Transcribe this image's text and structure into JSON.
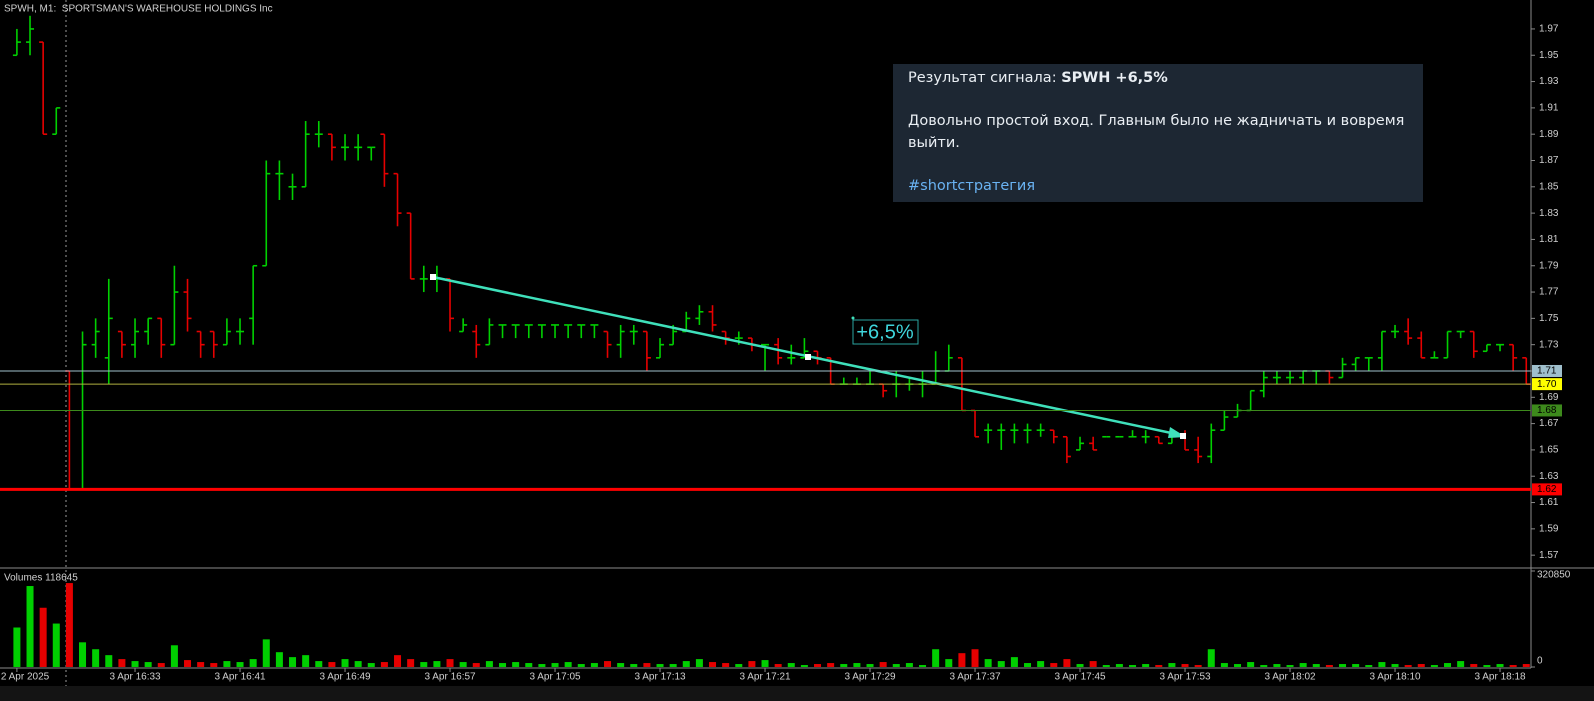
{
  "chart_data": {
    "type": "ohlc",
    "title": "SPWH, M1:  SPORTSMAN'S WAREHOUSE HOLDINGS Inc",
    "categories": [
      "2 Apr 2025",
      null,
      null,
      null,
      null,
      null,
      null,
      null,
      null,
      "3 Apr 16:33",
      null,
      null,
      null,
      null,
      null,
      null,
      null,
      "3 Apr 16:41",
      null,
      null,
      null,
      null,
      null,
      null,
      null,
      "3 Apr 16:49",
      null,
      null,
      null,
      null,
      null,
      null,
      null,
      "3 Apr 16:57",
      null,
      null,
      null,
      null,
      null,
      null,
      null,
      "3 Apr 17:05",
      null,
      null,
      null,
      null,
      null,
      null,
      null,
      "3 Apr 17:13",
      null,
      null,
      null,
      null,
      null,
      null,
      null,
      "3 Apr 17:21",
      null,
      null,
      null,
      null,
      null,
      null,
      null,
      "3 Apr 17:29",
      null,
      null,
      null,
      null,
      null,
      null,
      null,
      "3 Apr 17:37",
      null,
      null,
      null,
      null,
      null,
      null,
      null,
      "3 Apr 17:45",
      null,
      null,
      null,
      null,
      null,
      null,
      null,
      "3 Apr 17:53",
      null,
      null,
      null,
      null,
      null,
      null,
      null,
      "3 Apr 18:02",
      null,
      null,
      null,
      null,
      null,
      null,
      null,
      "3 Apr 18:10",
      null,
      null,
      null,
      null,
      null,
      null,
      null,
      "3 Apr 18:18",
      null,
      null
    ],
    "open": [
      1.95,
      1.96,
      1.96,
      1.89,
      1.71,
      1.62,
      1.73,
      1.72,
      1.74,
      1.73,
      1.74,
      1.75,
      1.73,
      1.77,
      1.74,
      1.74,
      1.73,
      1.74,
      1.75,
      1.79,
      1.86,
      1.85,
      1.85,
      1.89,
      1.89,
      1.88,
      1.88,
      1.88,
      1.89,
      1.86,
      1.83,
      1.78,
      1.78,
      1.78,
      1.74,
      1.74,
      1.73,
      1.745,
      1.745,
      1.745,
      1.745,
      1.745,
      1.745,
      1.745,
      1.745,
      1.74,
      1.73,
      1.74,
      1.74,
      1.72,
      1.73,
      1.74,
      1.75,
      1.755,
      1.74,
      1.735,
      1.735,
      1.73,
      1.73,
      1.72,
      1.72,
      1.725,
      1.72,
      1.7,
      1.7,
      1.7,
      1.7,
      1.7,
      1.7,
      1.7,
      1.7,
      1.71,
      1.72,
      1.68,
      1.665,
      1.665,
      1.665,
      1.665,
      1.665,
      1.665,
      1.66,
      1.65,
      1.655,
      1.66,
      1.66,
      1.66,
      1.66,
      1.66,
      1.655,
      1.66,
      1.65,
      1.645,
      1.665,
      1.675,
      1.68,
      1.695,
      1.705,
      1.705,
      1.705,
      1.71,
      1.71,
      1.705,
      1.715,
      1.72,
      1.72,
      1.74,
      1.74,
      1.735,
      1.72,
      1.72,
      1.74,
      1.74,
      1.725,
      1.73,
      1.73,
      1.72
    ],
    "high": [
      1.97,
      1.98,
      1.96,
      1.91,
      1.71,
      1.74,
      1.75,
      1.78,
      1.74,
      1.75,
      1.75,
      1.75,
      1.79,
      1.78,
      1.74,
      1.74,
      1.75,
      1.75,
      1.79,
      1.87,
      1.87,
      1.86,
      1.9,
      1.9,
      1.89,
      1.89,
      1.89,
      1.88,
      1.89,
      1.86,
      1.83,
      1.79,
      1.79,
      1.78,
      1.75,
      1.745,
      1.75,
      1.745,
      1.745,
      1.745,
      1.745,
      1.745,
      1.745,
      1.745,
      1.745,
      1.74,
      1.745,
      1.745,
      1.74,
      1.735,
      1.745,
      1.755,
      1.76,
      1.76,
      1.74,
      1.74,
      1.735,
      1.73,
      1.735,
      1.73,
      1.735,
      1.725,
      1.72,
      1.705,
      1.705,
      1.71,
      1.7,
      1.71,
      1.705,
      1.71,
      1.725,
      1.73,
      1.72,
      1.68,
      1.67,
      1.67,
      1.67,
      1.67,
      1.67,
      1.665,
      1.66,
      1.66,
      1.66,
      1.66,
      1.66,
      1.665,
      1.665,
      1.66,
      1.665,
      1.665,
      1.66,
      1.67,
      1.68,
      1.685,
      1.695,
      1.71,
      1.71,
      1.71,
      1.71,
      1.71,
      1.71,
      1.72,
      1.72,
      1.72,
      1.74,
      1.745,
      1.75,
      1.74,
      1.725,
      1.74,
      1.74,
      1.74,
      1.73,
      1.73,
      1.73,
      1.72
    ],
    "low": [
      1.95,
      1.95,
      1.89,
      1.89,
      1.62,
      1.62,
      1.72,
      1.7,
      1.72,
      1.72,
      1.73,
      1.72,
      1.73,
      1.74,
      1.72,
      1.72,
      1.73,
      1.73,
      1.73,
      1.79,
      1.84,
      1.84,
      1.85,
      1.88,
      1.87,
      1.87,
      1.87,
      1.87,
      1.85,
      1.82,
      1.78,
      1.77,
      1.77,
      1.74,
      1.74,
      1.72,
      1.73,
      1.735,
      1.735,
      1.735,
      1.735,
      1.735,
      1.735,
      1.735,
      1.735,
      1.72,
      1.72,
      1.73,
      1.71,
      1.72,
      1.73,
      1.74,
      1.745,
      1.74,
      1.73,
      1.73,
      1.725,
      1.71,
      1.715,
      1.715,
      1.72,
      1.715,
      1.7,
      1.7,
      1.7,
      1.7,
      1.69,
      1.69,
      1.695,
      1.69,
      1.7,
      1.71,
      1.68,
      1.66,
      1.655,
      1.65,
      1.655,
      1.655,
      1.66,
      1.655,
      1.64,
      1.65,
      1.65,
      1.66,
      1.66,
      1.66,
      1.655,
      1.655,
      1.655,
      1.65,
      1.64,
      1.64,
      1.665,
      1.675,
      1.68,
      1.69,
      1.7,
      1.7,
      1.7,
      1.7,
      1.7,
      1.705,
      1.71,
      1.71,
      1.71,
      1.735,
      1.73,
      1.72,
      1.72,
      1.72,
      1.735,
      1.72,
      1.725,
      1.725,
      1.71,
      1.7
    ],
    "close": [
      1.96,
      1.97,
      1.89,
      1.91,
      1.62,
      1.73,
      1.74,
      1.75,
      1.73,
      1.74,
      1.75,
      1.73,
      1.77,
      1.75,
      1.73,
      1.73,
      1.74,
      1.74,
      1.79,
      1.86,
      1.86,
      1.85,
      1.89,
      1.89,
      1.88,
      1.88,
      1.88,
      1.88,
      1.86,
      1.83,
      1.78,
      1.78,
      1.78,
      1.75,
      1.745,
      1.73,
      1.745,
      1.745,
      1.745,
      1.745,
      1.745,
      1.745,
      1.745,
      1.745,
      1.745,
      1.73,
      1.74,
      1.74,
      1.72,
      1.73,
      1.74,
      1.75,
      1.755,
      1.745,
      1.735,
      1.735,
      1.73,
      1.73,
      1.72,
      1.72,
      1.725,
      1.72,
      1.7,
      1.7,
      1.7,
      1.7,
      1.695,
      1.7,
      1.7,
      1.7,
      1.71,
      1.72,
      1.68,
      1.66,
      1.665,
      1.665,
      1.665,
      1.665,
      1.665,
      1.66,
      1.645,
      1.655,
      1.65,
      1.66,
      1.66,
      1.66,
      1.66,
      1.655,
      1.66,
      1.65,
      1.645,
      1.665,
      1.675,
      1.68,
      1.695,
      1.705,
      1.705,
      1.705,
      1.71,
      1.71,
      1.705,
      1.715,
      1.72,
      1.72,
      1.74,
      1.74,
      1.735,
      1.72,
      1.72,
      1.74,
      1.74,
      1.725,
      1.73,
      1.73,
      1.72,
      1.7
    ],
    "colors": {
      "up": "#00d000",
      "down": "#e60000"
    },
    "ylim": [
      1.561,
      1.992
    ],
    "yticks": [
      1.57,
      1.59,
      1.61,
      1.63,
      1.65,
      1.67,
      1.69,
      1.71,
      1.73,
      1.75,
      1.77,
      1.79,
      1.81,
      1.83,
      1.85,
      1.87,
      1.89,
      1.91,
      1.93,
      1.95,
      1.97
    ],
    "levels": [
      {
        "price": 1.71,
        "color": "#9fbfcc",
        "text_color": "#000000"
      },
      {
        "price": {
          "value": 1.7,
          "label": "1.70"
        },
        "color": "#b0b040",
        "label_color": "#ffff00",
        "text_color": "#000000"
      },
      {
        "price": 1.68,
        "color": "#3d8a1c",
        "text_color": "#000000"
      },
      {
        "price": 1.62,
        "color": "#ff0000",
        "text_color": "#000000"
      }
    ],
    "annotation": "+6,5%",
    "volume": {
      "title": "Volumes 118645",
      "values": [
        132000,
        270600,
        198000,
        145200,
        280500,
        82500,
        59400,
        39600,
        26400,
        19800,
        16500,
        13200,
        72600,
        23100,
        16500,
        13200,
        19800,
        16500,
        26400,
        92400,
        49500,
        33000,
        39600,
        19800,
        16500,
        26400,
        19800,
        13200,
        16500,
        39600,
        26400,
        16500,
        19800,
        26400,
        16500,
        13200,
        19800,
        13200,
        16500,
        13200,
        9900,
        13200,
        16500,
        9900,
        13200,
        19800,
        13200,
        9900,
        13200,
        9900,
        9900,
        19800,
        26400,
        16500,
        13200,
        9900,
        19800,
        23100,
        9900,
        13200,
        6600,
        9900,
        13200,
        9900,
        13200,
        9900,
        16500,
        9900,
        13200,
        6600,
        59400,
        26400,
        46200,
        59400,
        26400,
        19800,
        33000,
        13200,
        19800,
        13200,
        26400,
        9900,
        19800,
        6600,
        9900,
        6600,
        9900,
        6600,
        13200,
        9900,
        6600,
        59400,
        13200,
        9900,
        16500,
        6600,
        9900,
        6600,
        13200,
        9900,
        6600,
        9900,
        9900,
        6600,
        16500,
        9900,
        6600,
        9900,
        6600,
        13200,
        19800,
        9900,
        6600,
        9900,
        6600,
        9900
      ],
      "ylim": [
        0,
        320850
      ],
      "yticks": [
        0,
        320850
      ]
    }
  },
  "info": {
    "title_prefix": "Результат сигнала:",
    "title_bold": "SPWH +6,5%",
    "body": "Довольно простой вход. Главным было не жадничать и вовремя выйти.",
    "hashtag": "#shortстратегия"
  }
}
